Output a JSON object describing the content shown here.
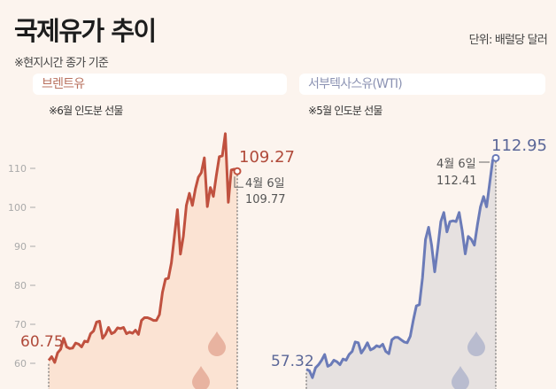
{
  "header": {
    "title": "국제유가 추이",
    "note": "※현지시간 종가 기준",
    "unit": "단위: 배럴당 달러"
  },
  "colors": {
    "background": "#fcf4ee",
    "brent_line": "#c0513f",
    "brent_fill": "#fbe3d3",
    "brent_drop": "#e8b3a0",
    "wti_line": "#6b7bb8",
    "wti_fill": "#e6e1e0",
    "wti_drop": "#b9bccf"
  },
  "chart_data": [
    {
      "type": "area",
      "title": "브렌트유",
      "subtitle": "※6월 인도분 선물",
      "ylabel": "",
      "yticks": [
        60,
        70,
        80,
        90,
        100,
        110
      ],
      "ylim": [
        55,
        120
      ],
      "series": [
        {
          "values": [
            60.75,
            61.7,
            60.2,
            62.7,
            63.6,
            66.4,
            64.2,
            63.8,
            63.9,
            65.2,
            64.9,
            64.2,
            65.7,
            65.5,
            67.6,
            68.3,
            70.6,
            70.8,
            66.4,
            67.4,
            69.2,
            67.6,
            68.0,
            69.1,
            68.9,
            69.2,
            67.6,
            68.0,
            67.7,
            68.5,
            67.4,
            71.0,
            71.7,
            71.7,
            71.4,
            71.0,
            71.0,
            72.5,
            78.2,
            81.6,
            81.8,
            85.8,
            92.6,
            99.4,
            88.0,
            92.6,
            100.5,
            103.6,
            100.5,
            104.7,
            107.7,
            108.9,
            112.7,
            100.2,
            105.1,
            102.8,
            108.1,
            113.0,
            113.2,
            118.9,
            101.3,
            109.6,
            109.77,
            109.27
          ]
        }
      ],
      "annotations": {
        "start": "60.75",
        "last": "109.27",
        "date": "4월 6일",
        "date_value": "109.77"
      }
    },
    {
      "type": "area",
      "title": "서부텍사스유(WTI)",
      "subtitle": "※5월 인도분 선물",
      "ylim": [
        50,
        115
      ],
      "series": [
        {
          "values": [
            57.32,
            56.9,
            55.1,
            57.7,
            58.5,
            59.7,
            61.2,
            58.1,
            58.5,
            59.7,
            59.3,
            58.5,
            60.0,
            59.7,
            61.2,
            62.0,
            64.5,
            64.3,
            61.6,
            62.8,
            64.3,
            62.4,
            62.8,
            63.5,
            63.2,
            63.9,
            62.0,
            61.4,
            65.1,
            65.7,
            65.7,
            65.1,
            64.5,
            64.3,
            66.0,
            70.2,
            74.0,
            74.3,
            81.4,
            91.5,
            94.7,
            90.0,
            83.0,
            89.2,
            96.2,
            98.6,
            93.5,
            96.2,
            96.4,
            96.2,
            98.6,
            93.9,
            87.7,
            92.3,
            91.5,
            90.0,
            95.4,
            100.1,
            102.8,
            100.1,
            106.3,
            112.41,
            112.95
          ]
        }
      ],
      "annotations": {
        "start": "57.32",
        "last": "112.95",
        "date": "4월 6일",
        "date_value": "112.41"
      }
    }
  ]
}
